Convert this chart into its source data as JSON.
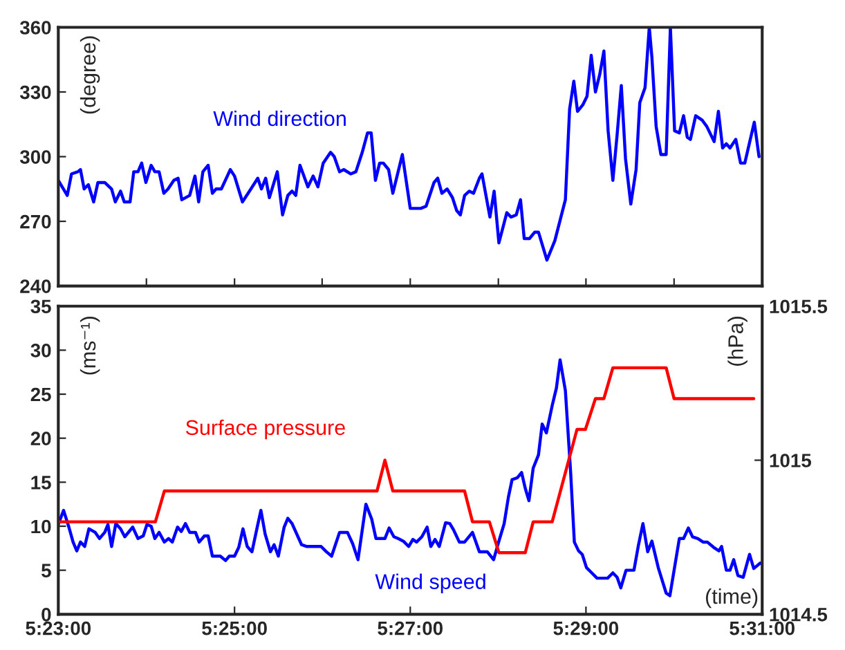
{
  "chart_data": [
    {
      "type": "line",
      "ylabel": "(degree)",
      "xlim": [
        5.3833,
        5.5167
      ],
      "ylim": [
        240,
        360
      ],
      "yticks": [
        240,
        270,
        300,
        330,
        360
      ],
      "xticks": [
        {
          "value": 5.3833,
          "label": null
        },
        {
          "value": 5.4,
          "label": null
        },
        {
          "value": 5.4167,
          "label": null
        },
        {
          "value": 5.4333,
          "label": null
        },
        {
          "value": 5.45,
          "label": null
        },
        {
          "value": 5.4667,
          "label": null
        },
        {
          "value": 5.4833,
          "label": null
        },
        {
          "value": 5.5,
          "label": null
        },
        {
          "value": 5.5167,
          "label": null
        }
      ],
      "tick_labels": "y",
      "grid": false,
      "legend": false,
      "series": [
        {
          "name": "Wind direction",
          "color": "#0000ff",
          "x": [
            5.3833,
            5.385,
            5.3858,
            5.387,
            5.3875,
            5.3882,
            5.389,
            5.39,
            5.3908,
            5.3921,
            5.3934,
            5.3941,
            5.3951,
            5.3958,
            5.3969,
            5.3976,
            5.3984,
            5.3991,
            5.3999,
            5.4009,
            5.4016,
            5.4024,
            5.4033,
            5.4041,
            5.4052,
            5.406,
            5.4067,
            5.4082,
            5.4092,
            5.4099,
            5.4107,
            5.4117,
            5.4125,
            5.4132,
            5.4142,
            5.4159,
            5.4167,
            5.4182,
            5.4198,
            5.4211,
            5.4218,
            5.4226,
            5.4233,
            5.4248,
            5.4258,
            5.4268,
            5.4276,
            5.4283,
            5.4291,
            5.4306,
            5.4316,
            5.4325,
            5.4335,
            5.4349,
            5.4356,
            5.4366,
            5.4374,
            5.4387,
            5.4397,
            5.4409,
            5.4419,
            5.4426,
            5.4434,
            5.4442,
            5.4449,
            5.4459,
            5.4467,
            5.4485,
            5.45,
            5.452,
            5.453,
            5.4545,
            5.4552,
            5.456,
            5.457,
            5.458,
            5.4588,
            5.4595,
            5.4603,
            5.4612,
            5.462,
            5.4631,
            5.4636,
            5.4651,
            5.4659,
            5.4668,
            5.4683,
            5.4691,
            5.4701,
            5.4709,
            5.4716,
            5.4726,
            5.4736,
            5.4743,
            5.4759,
            5.4774,
            5.4794,
            5.4802,
            5.481,
            5.4817,
            5.4827,
            5.4835,
            5.4843,
            5.4851,
            5.4859,
            5.4867,
            5.4875,
            5.4884,
            5.4892,
            5.49,
            5.4908,
            5.4918,
            5.4928,
            5.4935,
            5.4945,
            5.4953,
            5.4958,
            5.4966,
            5.4975,
            5.4985,
            5.4993,
            5.5001,
            5.501,
            5.5018,
            5.5025,
            5.5031,
            5.5041,
            5.5053,
            5.5062,
            5.5076,
            5.5084,
            5.5092,
            5.5099,
            5.5106,
            5.5117,
            5.5126,
            5.5134,
            5.5152,
            5.5161
          ],
          "values": [
            289,
            282,
            292,
            293,
            294,
            285,
            287,
            279,
            288,
            288,
            285,
            279,
            284,
            279,
            279,
            293,
            293,
            297,
            288,
            296,
            293,
            293,
            283,
            285,
            289,
            290,
            280,
            282,
            291,
            279,
            293,
            296,
            283,
            285,
            285,
            294,
            291,
            279,
            285,
            290,
            285,
            290,
            281,
            293,
            273,
            282,
            284,
            282,
            296,
            286,
            291,
            286,
            297,
            302,
            300,
            293,
            294,
            292,
            293,
            302,
            311,
            311,
            289,
            297,
            297,
            294,
            283,
            301,
            276,
            276,
            277,
            288,
            290,
            283,
            285,
            281,
            275,
            273,
            282,
            284,
            283,
            290,
            292,
            272,
            284,
            260,
            274,
            272,
            273,
            280,
            262,
            262,
            265,
            265,
            252,
            261,
            280,
            322,
            335,
            321,
            324,
            328,
            347,
            330,
            338,
            349,
            312,
            289,
            310,
            333,
            299,
            278,
            294,
            325,
            332,
            360,
            346,
            314,
            301,
            301,
            360,
            312,
            311,
            319,
            309,
            308,
            319,
            317,
            314,
            307,
            321,
            304,
            306,
            304,
            308,
            297,
            297,
            316,
            300
          ]
        }
      ]
    },
    {
      "type": "line",
      "ylabel": "(ms⁻¹)",
      "y2label": "(hPa)",
      "xlabel": "(time)",
      "xlim": [
        5.3833,
        5.5167
      ],
      "ylim": [
        0,
        35
      ],
      "yticks": [
        0,
        5,
        10,
        15,
        20,
        25,
        30,
        35
      ],
      "y2lim": [
        1014.5,
        1015.5
      ],
      "y2ticks": [
        1014.5,
        1015,
        1015.5
      ],
      "xticks": [
        {
          "value": 5.3833,
          "label": "5:23:00"
        },
        {
          "value": 5.4167,
          "label": "5:25:00"
        },
        {
          "value": 5.45,
          "label": "5:27:00"
        },
        {
          "value": 5.4833,
          "label": "5:29:00"
        },
        {
          "value": 5.5167,
          "label": "5:31:00"
        }
      ],
      "grid": false,
      "legend": false,
      "series": [
        {
          "name": "Wind speed",
          "color": "#0000ff",
          "x": [
            5.3833,
            5.3843,
            5.3853,
            5.3861,
            5.3868,
            5.3875,
            5.3883,
            5.3891,
            5.3903,
            5.3911,
            5.3921,
            5.3927,
            5.3934,
            5.3942,
            5.3951,
            5.3959,
            5.3974,
            5.3984,
            5.3994,
            5.4001,
            5.4009,
            5.4016,
            5.4024,
            5.4034,
            5.4042,
            5.4049,
            5.4059,
            5.4066,
            5.4074,
            5.4082,
            5.4093,
            5.41,
            5.411,
            5.4117,
            5.4125,
            5.414,
            5.415,
            5.4157,
            5.4167,
            5.4175,
            5.4183,
            5.4191,
            5.42,
            5.421,
            5.4217,
            5.4225,
            5.4235,
            5.4242,
            5.425,
            5.4261,
            5.4268,
            5.4276,
            5.4294,
            5.4304,
            5.4331,
            5.4341,
            5.4351,
            5.4366,
            5.4381,
            5.4391,
            5.4401,
            5.4416,
            5.4427,
            5.4435,
            5.4452,
            5.446,
            5.4469,
            5.4477,
            5.4487,
            5.4497,
            5.4505,
            5.4512,
            5.4522,
            5.4532,
            5.4539,
            5.4547,
            5.4555,
            5.4567,
            5.4575,
            5.4582,
            5.4593,
            5.4603,
            5.4618,
            5.4631,
            5.4646,
            5.4658,
            5.4668,
            5.4678,
            5.4686,
            5.4693,
            5.4703,
            5.4711,
            5.4718,
            5.4725,
            5.4733,
            5.4743,
            5.475,
            5.4758,
            5.4769,
            5.4777,
            5.4784,
            5.4794,
            5.4804,
            5.4811,
            5.4819,
            5.4826,
            5.4834,
            5.4844,
            5.4854,
            5.4874,
            5.4884,
            5.4892,
            5.4899,
            5.4909,
            5.4924,
            5.4932,
            5.4941,
            5.495,
            5.4958,
            5.497,
            5.4985,
            5.4992,
            5.501,
            5.5018,
            5.5027,
            5.5035,
            5.5045,
            5.5055,
            5.5063,
            5.5075,
            5.5085,
            5.509,
            5.5099,
            5.5106,
            5.5113,
            5.5121,
            5.5131,
            5.5143,
            5.5151,
            5.5163
          ],
          "values": [
            10.2,
            11.8,
            9.9,
            8.2,
            7.2,
            8.2,
            7.7,
            9.7,
            9.3,
            8.6,
            9.3,
            10.2,
            7.7,
            10.3,
            9.7,
            8.8,
            9.9,
            8.6,
            8.9,
            10.2,
            10.0,
            8.6,
            9.3,
            8.2,
            8.6,
            8.2,
            9.9,
            9.4,
            10.3,
            9.3,
            9.3,
            8.2,
            8.9,
            8.9,
            6.6,
            6.6,
            6.1,
            6.6,
            6.6,
            7.6,
            9.7,
            7.7,
            7.1,
            9.9,
            11.8,
            9.1,
            7.1,
            7.9,
            6.6,
            9.9,
            10.9,
            10.3,
            7.9,
            7.7,
            7.7,
            7.1,
            6.6,
            9.3,
            9.3,
            8.0,
            6.2,
            12.5,
            10.8,
            8.6,
            8.6,
            9.8,
            8.8,
            8.6,
            8.3,
            7.7,
            8.5,
            8.2,
            8.8,
            9.9,
            7.7,
            8.5,
            7.7,
            10.4,
            10.3,
            9.6,
            8.2,
            8.2,
            9.3,
            7.1,
            7.1,
            6.2,
            8.3,
            10.3,
            13.3,
            15.3,
            15.5,
            16.1,
            14.3,
            12.9,
            16.6,
            18.1,
            21.6,
            20.6,
            23.7,
            25.7,
            28.9,
            25.4,
            16.1,
            8.2,
            7.2,
            6.8,
            5.3,
            4.7,
            4.1,
            4.1,
            4.7,
            4.2,
            3.0,
            5.0,
            5.0,
            7.7,
            10.3,
            7.1,
            8.3,
            5.3,
            2.4,
            2.1,
            8.6,
            8.6,
            9.8,
            8.8,
            8.6,
            8.2,
            8.2,
            7.6,
            7.2,
            7.7,
            5.0,
            5.0,
            6.2,
            4.4,
            4.2,
            6.8,
            5.2,
            5.8
          ]
        },
        {
          "name": "Surface pressure",
          "color": "#ff0000",
          "axis": "y2",
          "x": [
            5.3833,
            5.4017,
            5.4034,
            5.4437,
            5.4452,
            5.4467,
            5.4603,
            5.4618,
            5.465,
            5.4668,
            5.4718,
            5.4733,
            5.4769,
            5.4816,
            5.4832,
            5.4851,
            5.4867,
            5.4884,
            5.4985,
            5.5,
            5.5151
          ],
          "values": [
            1014.8,
            1014.8,
            1014.9,
            1014.9,
            1015.0,
            1014.9,
            1014.9,
            1014.8,
            1014.8,
            1014.7,
            1014.7,
            1014.8,
            1014.8,
            1015.1,
            1015.1,
            1015.2,
            1015.2,
            1015.3,
            1015.3,
            1015.2,
            1015.2
          ]
        }
      ]
    }
  ]
}
